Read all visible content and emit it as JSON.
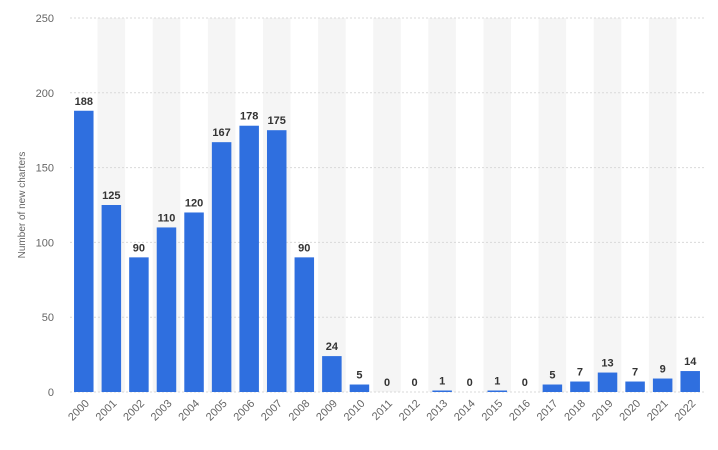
{
  "chart_data": {
    "type": "bar",
    "categories": [
      "2000",
      "2001",
      "2002",
      "2003",
      "2004",
      "2005",
      "2006",
      "2007",
      "2008",
      "2009",
      "2010",
      "2011",
      "2012",
      "2013",
      "2014",
      "2015",
      "2016",
      "2017",
      "2018",
      "2019",
      "2020",
      "2021",
      "2022"
    ],
    "values": [
      188,
      125,
      90,
      110,
      120,
      167,
      178,
      175,
      90,
      24,
      5,
      0,
      0,
      1,
      0,
      1,
      0,
      5,
      7,
      13,
      7,
      9,
      14
    ],
    "title": "",
    "xlabel": "",
    "ylabel": "Number of new charters",
    "ylim": [
      0,
      250
    ],
    "yticks": [
      0,
      50,
      100,
      150,
      200,
      250
    ],
    "grid": true,
    "legend": "none",
    "bar_color": "#2f6fdf",
    "band_color": "#f5f5f5"
  }
}
